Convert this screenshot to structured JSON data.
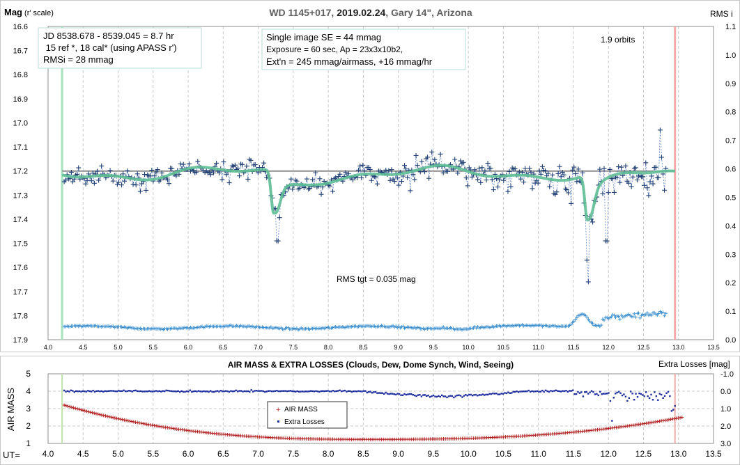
{
  "chart_data": [
    {
      "type": "scatter",
      "title_parts": [
        "WD 1145+017, ",
        "2019.02.24",
        ", Gary 14\", Arizona"
      ],
      "ylabel_bold": "Mag",
      "ylabel_rest": " (r' scale)",
      "y2label": "RMS i",
      "xlim": [
        4.0,
        13.5
      ],
      "ylim": [
        16.6,
        17.9
      ],
      "y_inverted": true,
      "y2lim": [
        0.0,
        1.1
      ],
      "x_ticks": [
        "4.0",
        "4.5",
        "5.0",
        "5.5",
        "6.0",
        "6.5",
        "7.0",
        "7.5",
        "8.0",
        "8.5",
        "9.0",
        "9.5",
        "10.0",
        "10.5",
        "11.0",
        "11.5",
        "12.0",
        "12.5",
        "13.0",
        "13.5"
      ],
      "y_ticks": [
        "16.6",
        "16.7",
        "16.8",
        "16.9",
        "17.0",
        "17.1",
        "17.2",
        "17.3",
        "17.4",
        "17.5",
        "17.6",
        "17.7",
        "17.8",
        "17.9"
      ],
      "y2_ticks": [
        "0.0",
        "0.1",
        "0.2",
        "0.3",
        "0.4",
        "0.5",
        "0.6",
        "0.7",
        "0.8",
        "0.9",
        "1.0",
        "1.1"
      ],
      "grid": "vertical",
      "info_box_1": [
        "JD 8538.678 - 8539.045 = 8.7 hr",
        " 15 ref *, 18 cal* (using APASS r')",
        "RMSi = 28 mmag"
      ],
      "info_box_2": [
        "Single image SE = 44 mmag",
        "Exposure = 60 sec, Ap = 23x3x10b2,",
        "Ext'n = 245 mmag/airmass, +16 mmag/hr"
      ],
      "orbits_label": "1.9 orbits",
      "rms_label": "RMS tgt = 0.035 mag",
      "reference_level": 17.2,
      "start_marker_x": 4.2,
      "end_marker_x": 12.95,
      "model_baseline": 17.21,
      "model_dips": [
        {
          "center": 7.22,
          "depth": 0.18
        },
        {
          "center": 11.7,
          "depth": 0.19
        }
      ],
      "data_x_range": [
        4.23,
        12.82
      ],
      "data_count": 420,
      "rms_baseline": 0.043,
      "colors": {
        "data": "#1f3f73",
        "data_line": "#5b7fc4",
        "model": "#5fbf95",
        "rms": "#3c8fcf",
        "ref_line": "#8c8c8c",
        "start_marker": "#a8e3bf",
        "end_marker": "#f1a9a9"
      }
    },
    {
      "type": "scatter",
      "title": "AIR MASS & EXTRA LOSSES (Clouds, Dew, Dome Synch, Wind, Seeing)",
      "ylabel": "AIR MASS",
      "y2label": "Extra Losses [mag]",
      "xlabel_prefix": "UT=",
      "xlim": [
        4.0,
        13.5
      ],
      "ylim": [
        1,
        5
      ],
      "y2lim": [
        -1.0,
        3.0
      ],
      "y2_inverted": true,
      "x_ticks": [
        "4.0",
        "4.5",
        "5.0",
        "5.5",
        "6.0",
        "6.5",
        "7.0",
        "7.5",
        "8.0",
        "8.5",
        "9.0",
        "9.5",
        "10.0",
        "10.5",
        "11.0",
        "11.5",
        "12.0",
        "12.5",
        "13.0",
        "13.5"
      ],
      "y_ticks": [
        "1",
        "2",
        "3",
        "4",
        "5"
      ],
      "y2_ticks": [
        "-1.0",
        "0.0",
        "1.0",
        "2.0",
        "3.0"
      ],
      "grid": "both",
      "series": [
        {
          "name": "AIR MASS",
          "marker": "+",
          "color": "#b22222"
        },
        {
          "name": "Extra Losses",
          "marker": "square",
          "color": "#1f2f9f"
        }
      ],
      "airmass_start": 3.2,
      "airmass_min": 1.23,
      "airmass_min_x": 8.6,
      "airmass_end": 2.5,
      "losses_baseline": 0.0,
      "colors": {
        "start_marker": "#bfe3a8",
        "end_marker": "#f1a9a9"
      }
    }
  ]
}
